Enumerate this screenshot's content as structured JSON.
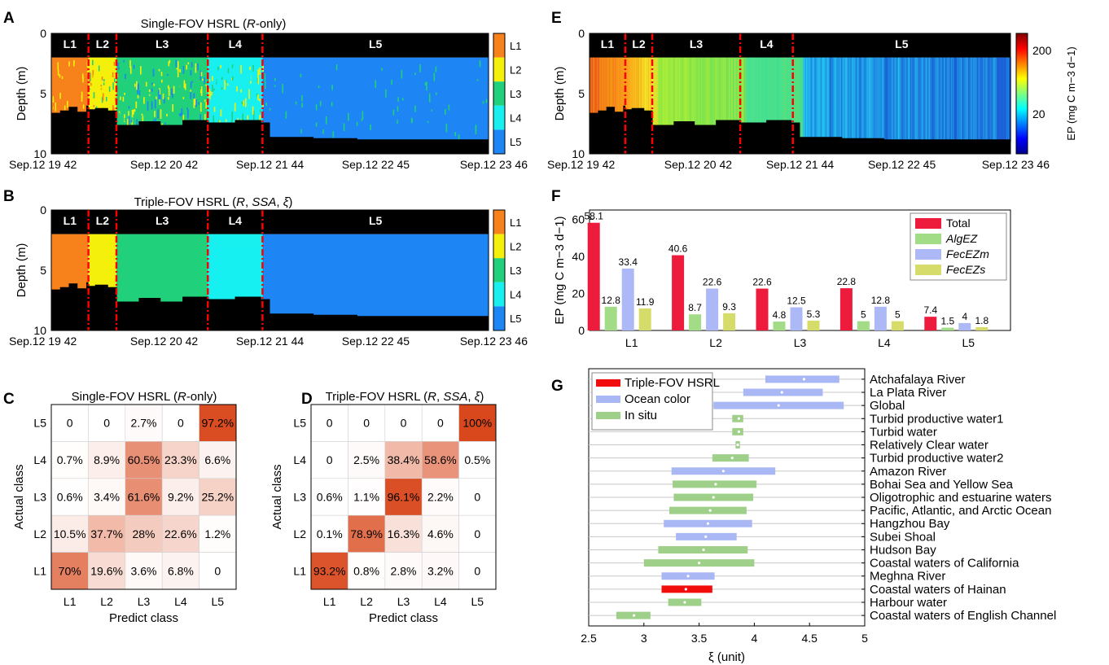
{
  "panel_letters": [
    "A",
    "B",
    "C",
    "D",
    "E",
    "F",
    "G"
  ],
  "layer_names": [
    "L1",
    "L2",
    "L3",
    "L4",
    "L5"
  ],
  "layer_colors": [
    "#f7811a",
    "#f4f00c",
    "#20d07a",
    "#18f0f0",
    "#1d85f4"
  ],
  "time_ticks": [
    "Sep.12 19 42",
    "Sep.12 20 42",
    "Sep.12 21 44",
    "Sep.12 22 45",
    "Sep.12 23 46"
  ],
  "time_tick_fracs": [
    0.0,
    0.258,
    0.5,
    0.742,
    1.0
  ],
  "depth_label": "Depth (m)",
  "depth_ticks": [
    0,
    5,
    10
  ],
  "boundary_fracs": [
    0.085,
    0.149,
    0.358,
    0.483
  ],
  "seafloor_profile": {
    "depth_m": [
      10,
      10,
      10,
      10,
      10
    ],
    "note_fracs_from": [
      0.0
    ],
    "segments_depth": [
      [
        0.0,
        6.6
      ],
      [
        0.02,
        6.4
      ],
      [
        0.04,
        6.1
      ],
      [
        0.06,
        6.5
      ],
      [
        0.08,
        6.0
      ],
      [
        0.085,
        6.3
      ],
      [
        0.1,
        6.2
      ],
      [
        0.13,
        6.4
      ],
      [
        0.15,
        7.6
      ],
      [
        0.2,
        7.3
      ],
      [
        0.25,
        7.6
      ],
      [
        0.3,
        7.2
      ],
      [
        0.36,
        7.4
      ],
      [
        0.42,
        7.2
      ],
      [
        0.48,
        7.4
      ],
      [
        0.5,
        8.6
      ],
      [
        0.6,
        8.7
      ],
      [
        0.7,
        8.8
      ],
      [
        0.8,
        8.8
      ],
      [
        0.9,
        8.8
      ],
      [
        1.0,
        8.7
      ]
    ]
  },
  "chart_data": [
    {
      "panel": "A",
      "type": "heatmap",
      "title": "Single-FOV HSRL (R-only)",
      "title_parts": [
        "Single-FOV HSRL (",
        "R",
        "-only)"
      ],
      "ylabel": "Depth (m)",
      "ylim": [
        0,
        10
      ],
      "x_ticks": [
        "Sep.12 19 42",
        "Sep.12 20 42",
        "Sep.12 21 44",
        "Sep.12 22 45",
        "Sep.12 23 46"
      ],
      "segments": [
        "L1",
        "L2",
        "L3",
        "L4",
        "L5"
      ],
      "colorbar_labels": [
        "L1",
        "L2",
        "L3",
        "L4",
        "L5"
      ]
    },
    {
      "panel": "B",
      "type": "heatmap",
      "title": "Triple-FOV HSRL (R, SSA, ξ)",
      "title_parts": [
        "Triple-FOV HSRL (",
        "R",
        ", ",
        "SSA",
        ", ",
        "ξ",
        ")"
      ],
      "ylabel": "Depth (m)",
      "ylim": [
        0,
        10
      ],
      "x_ticks": [
        "Sep.12 19 42",
        "Sep.12 20 42",
        "Sep.12 21 44",
        "Sep.12 22 45",
        "Sep.12 23 46"
      ],
      "segments": [
        "L1",
        "L2",
        "L3",
        "L4",
        "L5"
      ],
      "colorbar_labels": [
        "L1",
        "L2",
        "L3",
        "L4",
        "L5"
      ]
    },
    {
      "panel": "C",
      "type": "heatmap",
      "title": "Single-FOV HSRL (R-only)",
      "title_parts": [
        "Single-FOV HSRL (",
        "R",
        "-only)"
      ],
      "xlabel": "Predict class",
      "ylabel": "Actual class",
      "x_categories": [
        "L1",
        "L2",
        "L3",
        "L4",
        "L5"
      ],
      "y_categories": [
        "L5",
        "L4",
        "L3",
        "L2",
        "L1"
      ],
      "values": [
        [
          0,
          0,
          2.7,
          0,
          97.2
        ],
        [
          0.7,
          8.9,
          60.5,
          23.3,
          6.6
        ],
        [
          0.6,
          3.4,
          61.6,
          9.2,
          25.2
        ],
        [
          10.5,
          37.7,
          28,
          22.6,
          1.2
        ],
        [
          70,
          19.6,
          3.6,
          6.8,
          0
        ]
      ],
      "labels": [
        [
          "0",
          "0",
          "2.7%",
          "0",
          "97.2%"
        ],
        [
          "0.7%",
          "8.9%",
          "60.5%",
          "23.3%",
          "6.6%"
        ],
        [
          "0.6%",
          "3.4%",
          "61.6%",
          "9.2%",
          "25.2%"
        ],
        [
          "10.5%",
          "37.7%",
          "28%",
          "22.6%",
          "1.2%"
        ],
        [
          "70%",
          "19.6%",
          "3.6%",
          "6.8%",
          "0"
        ]
      ]
    },
    {
      "panel": "D",
      "type": "heatmap",
      "title": "Triple-FOV HSRL (R, SSA, ξ)",
      "title_parts": [
        "Triple-FOV HSRL (",
        "R",
        ", ",
        "SSA",
        ", ",
        "ξ",
        ")"
      ],
      "xlabel": "Predict class",
      "ylabel": "Actual class",
      "x_categories": [
        "L1",
        "L2",
        "L3",
        "L4",
        "L5"
      ],
      "y_categories": [
        "L5",
        "L4",
        "L3",
        "L2",
        "L1"
      ],
      "values": [
        [
          0,
          0,
          0,
          0,
          100
        ],
        [
          0,
          2.5,
          38.4,
          58.6,
          0.5
        ],
        [
          0.6,
          1.1,
          96.1,
          2.2,
          0
        ],
        [
          0.1,
          78.9,
          16.3,
          4.6,
          0
        ],
        [
          93.2,
          0.8,
          2.8,
          3.2,
          0
        ]
      ],
      "labels": [
        [
          "0",
          "0",
          "0",
          "0",
          "100%"
        ],
        [
          "0",
          "2.5%",
          "38.4%",
          "58.6%",
          "0.5%"
        ],
        [
          "0.6%",
          "1.1%",
          "96.1%",
          "2.2%",
          "0"
        ],
        [
          "0.1%",
          "78.9%",
          "16.3%",
          "4.6%",
          "0"
        ],
        [
          "93.2%",
          "0.8%",
          "2.8%",
          "3.2%",
          "0"
        ]
      ]
    },
    {
      "panel": "E",
      "type": "heatmap",
      "ylabel": "Depth (m)",
      "ylim": [
        0,
        10
      ],
      "x_ticks": [
        "Sep.12 19 42",
        "Sep.12 20 42",
        "Sep.12 21 44",
        "Sep.12 22 45",
        "Sep.12 23 46"
      ],
      "segments": [
        "L1",
        "L2",
        "L3",
        "L4",
        "L5"
      ],
      "colorbar_label": "EP (mg C m−3 d−1)",
      "colorbar_ticks": [
        "200",
        "20"
      ],
      "colorbar_scale": "log"
    },
    {
      "panel": "F",
      "type": "bar",
      "ylabel": "EP (mg C m−3 d−1)",
      "ylim": [
        0,
        65
      ],
      "yticks": [
        0,
        20,
        40,
        60
      ],
      "categories": [
        "L1",
        "L2",
        "L3",
        "L4",
        "L5"
      ],
      "series": [
        {
          "name": "Total",
          "color": "#ee1c3c",
          "values": [
            58.1,
            40.6,
            22.6,
            22.8,
            7.4
          ]
        },
        {
          "name": "AlgEZ",
          "color": "#a3dc86",
          "values": [
            12.8,
            8.7,
            4.8,
            5,
            1.5
          ]
        },
        {
          "name": "FecEZm",
          "color": "#adb8f7",
          "values": [
            33.4,
            22.6,
            12.5,
            12.8,
            4
          ]
        },
        {
          "name": "FecEZs",
          "color": "#d6dc6a",
          "values": [
            11.9,
            9.3,
            5.3,
            5,
            1.8
          ]
        }
      ],
      "legend": "top-right"
    },
    {
      "panel": "G",
      "type": "bar",
      "orientation": "horizontal-range",
      "xlabel": "ξ (unit)",
      "xlim": [
        2.5,
        5
      ],
      "xticks": [
        "2.5",
        "3",
        "3.5",
        "4",
        "4.5",
        "5"
      ],
      "legend": "top-left",
      "legend_entries": [
        {
          "name": "Triple-FOV HSRL",
          "color": "#f20d0d"
        },
        {
          "name": "Ocean color",
          "color": "#a9b7f5"
        },
        {
          "name": "In situ",
          "color": "#9fd08a"
        }
      ],
      "rows": [
        {
          "label": "Atchafalaya River",
          "type": "Ocean color",
          "min": 4.1,
          "max": 4.77,
          "mean": 4.45
        },
        {
          "label": "La Plata River",
          "type": "Ocean color",
          "min": 3.9,
          "max": 4.62,
          "mean": 4.25
        },
        {
          "label": "Global",
          "type": "Ocean color",
          "min": 3.63,
          "max": 4.81,
          "mean": 4.22
        },
        {
          "label": "Turbid productive water1",
          "type": "In situ",
          "min": 3.8,
          "max": 3.9,
          "mean": 3.86
        },
        {
          "label": "Turbid water",
          "type": "In situ",
          "min": 3.8,
          "max": 3.9,
          "mean": 3.86
        },
        {
          "label": "Relatively Clear water",
          "type": "In situ",
          "min": 3.83,
          "max": 3.87,
          "mean": 3.85
        },
        {
          "label": "Turbid productive water2",
          "type": "In situ",
          "min": 3.62,
          "max": 3.95,
          "mean": 3.8
        },
        {
          "label": "Amazon River",
          "type": "Ocean color",
          "min": 3.25,
          "max": 4.19,
          "mean": 3.72
        },
        {
          "label": "Bohai Sea and Yellow Sea",
          "type": "In situ",
          "min": 3.26,
          "max": 4.02,
          "mean": 3.65
        },
        {
          "label": "Oligotrophic and estuarine waters",
          "type": "In situ",
          "min": 3.27,
          "max": 3.99,
          "mean": 3.63
        },
        {
          "label": "Pacific, Atlantic, and Arctic Ocean",
          "type": "In situ",
          "min": 3.23,
          "max": 3.93,
          "mean": 3.6
        },
        {
          "label": "Hangzhou Bay",
          "type": "Ocean color",
          "min": 3.18,
          "max": 3.98,
          "mean": 3.58
        },
        {
          "label": "Subei Shoal",
          "type": "Ocean color",
          "min": 3.29,
          "max": 3.84,
          "mean": 3.56
        },
        {
          "label": "Hudson Bay",
          "type": "In situ",
          "min": 3.13,
          "max": 3.94,
          "mean": 3.54
        },
        {
          "label": "Coastal waters of California",
          "type": "In situ",
          "min": 3.0,
          "max": 4.0,
          "mean": 3.5
        },
        {
          "label": "Meghna River",
          "type": "Ocean color",
          "min": 3.16,
          "max": 3.64,
          "mean": 3.4
        },
        {
          "label": "Coastal waters of Hainan",
          "type": "Triple-FOV HSRL",
          "min": 3.16,
          "max": 3.62,
          "mean": 3.38
        },
        {
          "label": "Harbour water",
          "type": "In situ",
          "min": 3.22,
          "max": 3.52,
          "mean": 3.37
        },
        {
          "label": "Coastal waters of English Channel",
          "type": "In situ",
          "min": 2.75,
          "max": 3.06,
          "mean": 2.91
        }
      ]
    }
  ]
}
